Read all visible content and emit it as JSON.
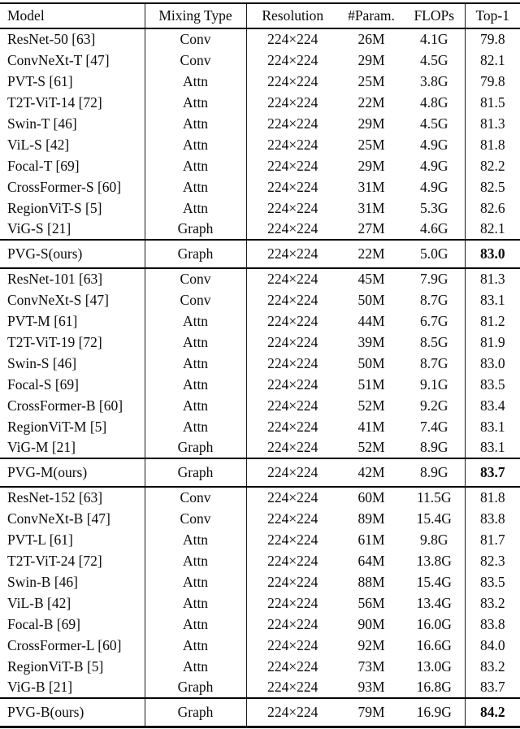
{
  "meta": {
    "background_color": "#ffffff",
    "text_color": "#0b0b0b",
    "rule_color": "#000000"
  },
  "table": {
    "columns": [
      {
        "key": "model",
        "label": "Model",
        "align": "left"
      },
      {
        "key": "mixing",
        "label": "Mixing Type",
        "align": "center"
      },
      {
        "key": "resolution",
        "label": "Resolution",
        "align": "center"
      },
      {
        "key": "params",
        "label": "#Param.",
        "align": "center"
      },
      {
        "key": "flops",
        "label": "FLOPs",
        "align": "center"
      },
      {
        "key": "top1",
        "label": "Top-1",
        "align": "center"
      }
    ],
    "sections": [
      {
        "ours": false,
        "rows": [
          {
            "model": "ResNet-50 [63]",
            "mixing": "Conv",
            "resolution": "224×224",
            "params": "26M",
            "flops": "4.1G",
            "top1": "79.8",
            "top1_bold": false
          },
          {
            "model": "ConvNeXt-T [47]",
            "mixing": "Conv",
            "resolution": "224×224",
            "params": "29M",
            "flops": "4.5G",
            "top1": "82.1",
            "top1_bold": false
          },
          {
            "model": "PVT-S [61]",
            "mixing": "Attn",
            "resolution": "224×224",
            "params": "25M",
            "flops": "3.8G",
            "top1": "79.8",
            "top1_bold": false
          },
          {
            "model": "T2T-ViT-14 [72]",
            "mixing": "Attn",
            "resolution": "224×224",
            "params": "22M",
            "flops": "4.8G",
            "top1": "81.5",
            "top1_bold": false
          },
          {
            "model": "Swin-T [46]",
            "mixing": "Attn",
            "resolution": "224×224",
            "params": "29M",
            "flops": "4.5G",
            "top1": "81.3",
            "top1_bold": false
          },
          {
            "model": "ViL-S [42]",
            "mixing": "Attn",
            "resolution": "224×224",
            "params": "25M",
            "flops": "4.9G",
            "top1": "81.8",
            "top1_bold": false
          },
          {
            "model": "Focal-T [69]",
            "mixing": "Attn",
            "resolution": "224×224",
            "params": "29M",
            "flops": "4.9G",
            "top1": "82.2",
            "top1_bold": false
          },
          {
            "model": "CrossFormer-S [60]",
            "mixing": "Attn",
            "resolution": "224×224",
            "params": "31M",
            "flops": "4.9G",
            "top1": "82.5",
            "top1_bold": false
          },
          {
            "model": "RegionViT-S [5]",
            "mixing": "Attn",
            "resolution": "224×224",
            "params": "31M",
            "flops": "5.3G",
            "top1": "82.6",
            "top1_bold": false
          },
          {
            "model": "ViG-S [21]",
            "mixing": "Graph",
            "resolution": "224×224",
            "params": "27M",
            "flops": "4.6G",
            "top1": "82.1",
            "top1_bold": false
          }
        ]
      },
      {
        "ours": true,
        "rows": [
          {
            "model": "PVG-S(ours)",
            "mixing": "Graph",
            "resolution": "224×224",
            "params": "22M",
            "flops": "5.0G",
            "top1": "83.0",
            "top1_bold": true
          }
        ]
      },
      {
        "ours": false,
        "rows": [
          {
            "model": "ResNet-101 [63]",
            "mixing": "Conv",
            "resolution": "224×224",
            "params": "45M",
            "flops": "7.9G",
            "top1": "81.3",
            "top1_bold": false
          },
          {
            "model": "ConvNeXt-S [47]",
            "mixing": "Conv",
            "resolution": "224×224",
            "params": "50M",
            "flops": "8.7G",
            "top1": "83.1",
            "top1_bold": false
          },
          {
            "model": "PVT-M [61]",
            "mixing": "Attn",
            "resolution": "224×224",
            "params": "44M",
            "flops": "6.7G",
            "top1": "81.2",
            "top1_bold": false
          },
          {
            "model": "T2T-ViT-19 [72]",
            "mixing": "Attn",
            "resolution": "224×224",
            "params": "39M",
            "flops": "8.5G",
            "top1": "81.9",
            "top1_bold": false
          },
          {
            "model": "Swin-S [46]",
            "mixing": "Attn",
            "resolution": "224×224",
            "params": "50M",
            "flops": "8.7G",
            "top1": "83.0",
            "top1_bold": false
          },
          {
            "model": "Focal-S [69]",
            "mixing": "Attn",
            "resolution": "224×224",
            "params": "51M",
            "flops": "9.1G",
            "top1": "83.5",
            "top1_bold": false
          },
          {
            "model": "CrossFormer-B [60]",
            "mixing": "Attn",
            "resolution": "224×224",
            "params": "52M",
            "flops": "9.2G",
            "top1": "83.4",
            "top1_bold": false
          },
          {
            "model": "RegionViT-M [5]",
            "mixing": "Attn",
            "resolution": "224×224",
            "params": "41M",
            "flops": "7.4G",
            "top1": "83.1",
            "top1_bold": false
          },
          {
            "model": "ViG-M [21]",
            "mixing": "Graph",
            "resolution": "224×224",
            "params": "52M",
            "flops": "8.9G",
            "top1": "83.1",
            "top1_bold": false
          }
        ]
      },
      {
        "ours": true,
        "rows": [
          {
            "model": "PVG-M(ours)",
            "mixing": "Graph",
            "resolution": "224×224",
            "params": "42M",
            "flops": "8.9G",
            "top1": "83.7",
            "top1_bold": true
          }
        ]
      },
      {
        "ours": false,
        "rows": [
          {
            "model": "ResNet-152 [63]",
            "mixing": "Conv",
            "resolution": "224×224",
            "params": "60M",
            "flops": "11.5G",
            "top1": "81.8",
            "top1_bold": false
          },
          {
            "model": "ConvNeXt-B [47]",
            "mixing": "Conv",
            "resolution": "224×224",
            "params": "89M",
            "flops": "15.4G",
            "top1": "83.8",
            "top1_bold": false
          },
          {
            "model": "PVT-L [61]",
            "mixing": "Attn",
            "resolution": "224×224",
            "params": "61M",
            "flops": "9.8G",
            "top1": "81.7",
            "top1_bold": false
          },
          {
            "model": "T2T-ViT-24 [72]",
            "mixing": "Attn",
            "resolution": "224×224",
            "params": "64M",
            "flops": "13.8G",
            "top1": "82.3",
            "top1_bold": false
          },
          {
            "model": "Swin-B [46]",
            "mixing": "Attn",
            "resolution": "224×224",
            "params": "88M",
            "flops": "15.4G",
            "top1": "83.5",
            "top1_bold": false
          },
          {
            "model": "ViL-B [42]",
            "mixing": "Attn",
            "resolution": "224×224",
            "params": "56M",
            "flops": "13.4G",
            "top1": "83.2",
            "top1_bold": false
          },
          {
            "model": "Focal-B [69]",
            "mixing": "Attn",
            "resolution": "224×224",
            "params": "90M",
            "flops": "16.0G",
            "top1": "83.8",
            "top1_bold": false
          },
          {
            "model": "CrossFormer-L [60]",
            "mixing": "Attn",
            "resolution": "224×224",
            "params": "92M",
            "flops": "16.6G",
            "top1": "84.0",
            "top1_bold": false
          },
          {
            "model": "RegionViT-B [5]",
            "mixing": "Attn",
            "resolution": "224×224",
            "params": "73M",
            "flops": "13.0G",
            "top1": "83.2",
            "top1_bold": false
          },
          {
            "model": "ViG-B [21]",
            "mixing": "Graph",
            "resolution": "224×224",
            "params": "93M",
            "flops": "16.8G",
            "top1": "83.7",
            "top1_bold": false
          }
        ]
      },
      {
        "ours": true,
        "rows": [
          {
            "model": "PVG-B(ours)",
            "mixing": "Graph",
            "resolution": "224×224",
            "params": "79M",
            "flops": "16.9G",
            "top1": "84.2",
            "top1_bold": true
          }
        ]
      }
    ]
  }
}
